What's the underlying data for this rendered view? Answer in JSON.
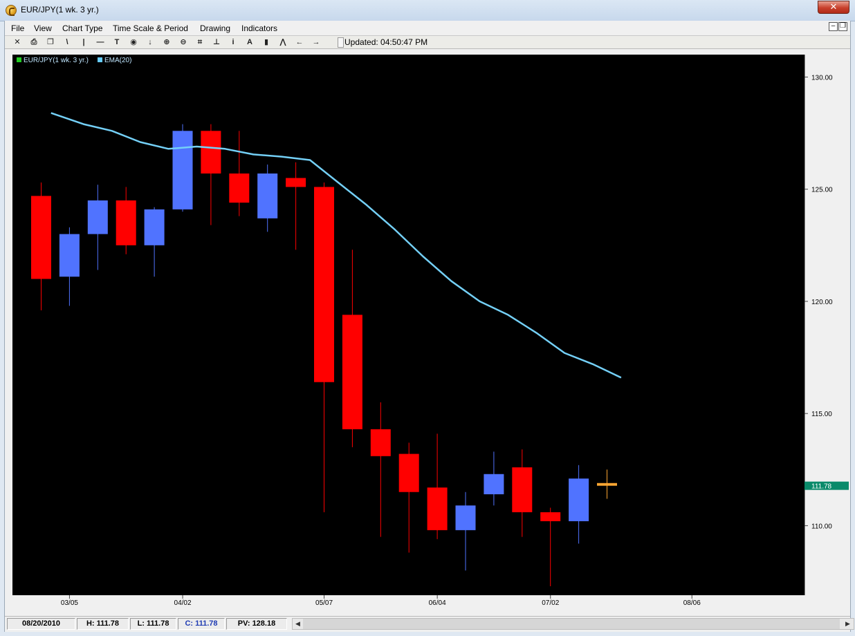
{
  "window": {
    "title": "EUR/JPY(1 wk.  3 yr.)",
    "close_glyph": "✕"
  },
  "menu": [
    "File",
    "View",
    "Chart Type",
    "Time Scale & Period",
    "Drawing",
    "Indicators"
  ],
  "mdi": {
    "restore_glyph": "❐",
    "min_glyph": "–"
  },
  "toolbar": {
    "icons": [
      "crosshair-icon",
      "print-icon",
      "copy-icon",
      "trendline-icon",
      "vertical-line-icon",
      "horizontal-line-icon",
      "text-icon",
      "target-icon",
      "arrow-down-icon",
      "zoom-in-icon",
      "zoom-out-icon",
      "fit-icon",
      "baseline-icon",
      "info-icon",
      "font-icon",
      "bar-chart-icon",
      "indicator-icon",
      "scroll-left-icon",
      "scroll-right-icon"
    ],
    "glyphs": [
      "✕",
      "⎙",
      "❐",
      "\\",
      "|",
      "—",
      "T",
      "◉",
      "↓",
      "⊕",
      "⊖",
      "⌗",
      "⊥",
      "i",
      "A",
      "▮",
      "⋀",
      "←",
      "→"
    ],
    "updated_text": "Updated: 04:50:47 PM"
  },
  "legend": [
    {
      "label": "EUR/JPY(1 wk.  3 yr.)",
      "color": "#22cc22"
    },
    {
      "label": "EMA(20)",
      "color": "#66ccff"
    }
  ],
  "colors": {
    "up": "#5073ff",
    "down": "#ff0000",
    "current": "#ffa733",
    "ema": "#74d0f7",
    "last_price_bg": "#0a8a6a"
  },
  "chart_data": {
    "type": "candlestick",
    "y_ticks": [
      "130.00",
      "125.00",
      "120.00",
      "115.00",
      "110.00"
    ],
    "y_tick_values": [
      130,
      125,
      120,
      115,
      110
    ],
    "ylim": [
      106.9,
      131.0
    ],
    "x_ticks": [
      {
        "label": "03/05",
        "index": 1.5
      },
      {
        "label": "04/02",
        "index": 5.5
      },
      {
        "label": "05/07",
        "index": 10.5
      },
      {
        "label": "06/04",
        "index": 14.5
      },
      {
        "label": "07/02",
        "index": 18.5
      },
      {
        "label": "08/06",
        "index": 23.5
      }
    ],
    "candles": [
      {
        "o": 121.0,
        "h": 125.3,
        "l": 119.6,
        "c": 124.7,
        "dir": "down"
      },
      {
        "o": 121.1,
        "h": 123.3,
        "l": 119.8,
        "c": 123.0,
        "dir": "up"
      },
      {
        "o": 123.0,
        "h": 125.2,
        "l": 121.4,
        "c": 124.5,
        "dir": "up"
      },
      {
        "o": 124.5,
        "h": 125.1,
        "l": 122.1,
        "c": 122.5,
        "dir": "down"
      },
      {
        "o": 122.5,
        "h": 124.2,
        "l": 121.1,
        "c": 124.1,
        "dir": "up"
      },
      {
        "o": 124.1,
        "h": 127.9,
        "l": 124.0,
        "c": 127.6,
        "dir": "up"
      },
      {
        "o": 127.6,
        "h": 127.9,
        "l": 123.4,
        "c": 125.7,
        "dir": "down"
      },
      {
        "o": 125.7,
        "h": 127.6,
        "l": 123.8,
        "c": 124.4,
        "dir": "down"
      },
      {
        "o": 123.7,
        "h": 126.1,
        "l": 123.1,
        "c": 125.7,
        "dir": "up"
      },
      {
        "o": 125.5,
        "h": 126.2,
        "l": 122.3,
        "c": 125.1,
        "dir": "down"
      },
      {
        "o": 125.1,
        "h": 125.3,
        "l": 110.6,
        "c": 116.4,
        "dir": "down"
      },
      {
        "o": 119.4,
        "h": 122.3,
        "l": 113.5,
        "c": 114.3,
        "dir": "down"
      },
      {
        "o": 114.3,
        "h": 115.5,
        "l": 109.5,
        "c": 113.1,
        "dir": "down"
      },
      {
        "o": 113.2,
        "h": 113.7,
        "l": 108.8,
        "c": 111.5,
        "dir": "down"
      },
      {
        "o": 111.7,
        "h": 114.1,
        "l": 109.4,
        "c": 109.8,
        "dir": "down"
      },
      {
        "o": 109.8,
        "h": 111.5,
        "l": 108.0,
        "c": 110.9,
        "dir": "up"
      },
      {
        "o": 111.4,
        "h": 113.3,
        "l": 110.9,
        "c": 112.3,
        "dir": "up"
      },
      {
        "o": 112.6,
        "h": 113.4,
        "l": 109.5,
        "c": 110.6,
        "dir": "down"
      },
      {
        "o": 110.6,
        "h": 110.8,
        "l": 107.3,
        "c": 110.2,
        "dir": "down"
      },
      {
        "o": 110.2,
        "h": 112.7,
        "l": 109.2,
        "c": 112.1,
        "dir": "up"
      },
      {
        "o": 111.9,
        "h": 112.5,
        "l": 111.2,
        "c": 111.78,
        "dir": "current"
      }
    ],
    "ema": {
      "label": "EMA(20)",
      "points": [
        {
          "i": 0.35,
          "v": 128.4
        },
        {
          "i": 1.5,
          "v": 127.9
        },
        {
          "i": 2.5,
          "v": 127.6
        },
        {
          "i": 3.5,
          "v": 127.1
        },
        {
          "i": 4.5,
          "v": 126.8
        },
        {
          "i": 5.5,
          "v": 126.9
        },
        {
          "i": 6.5,
          "v": 126.8
        },
        {
          "i": 7.5,
          "v": 126.55
        },
        {
          "i": 8.5,
          "v": 126.45
        },
        {
          "i": 9.5,
          "v": 126.3
        },
        {
          "i": 10.5,
          "v": 125.3
        },
        {
          "i": 11.5,
          "v": 124.3
        },
        {
          "i": 12.5,
          "v": 123.2
        },
        {
          "i": 13.5,
          "v": 122.0
        },
        {
          "i": 14.5,
          "v": 120.9
        },
        {
          "i": 15.5,
          "v": 120.0
        },
        {
          "i": 16.5,
          "v": 119.4
        },
        {
          "i": 17.5,
          "v": 118.6
        },
        {
          "i": 18.5,
          "v": 117.7
        },
        {
          "i": 19.5,
          "v": 117.2
        },
        {
          "i": 20.5,
          "v": 116.6
        }
      ]
    },
    "last_price": {
      "label": "111.78",
      "value": 111.78
    }
  },
  "status": {
    "date": "08/20/2010",
    "high": "H: 111.78",
    "low": "L: 111.78",
    "close": "C: 111.78",
    "pv": "PV: 128.18",
    "scroll_left_glyph": "◀",
    "scroll_right_glyph": "▶"
  }
}
